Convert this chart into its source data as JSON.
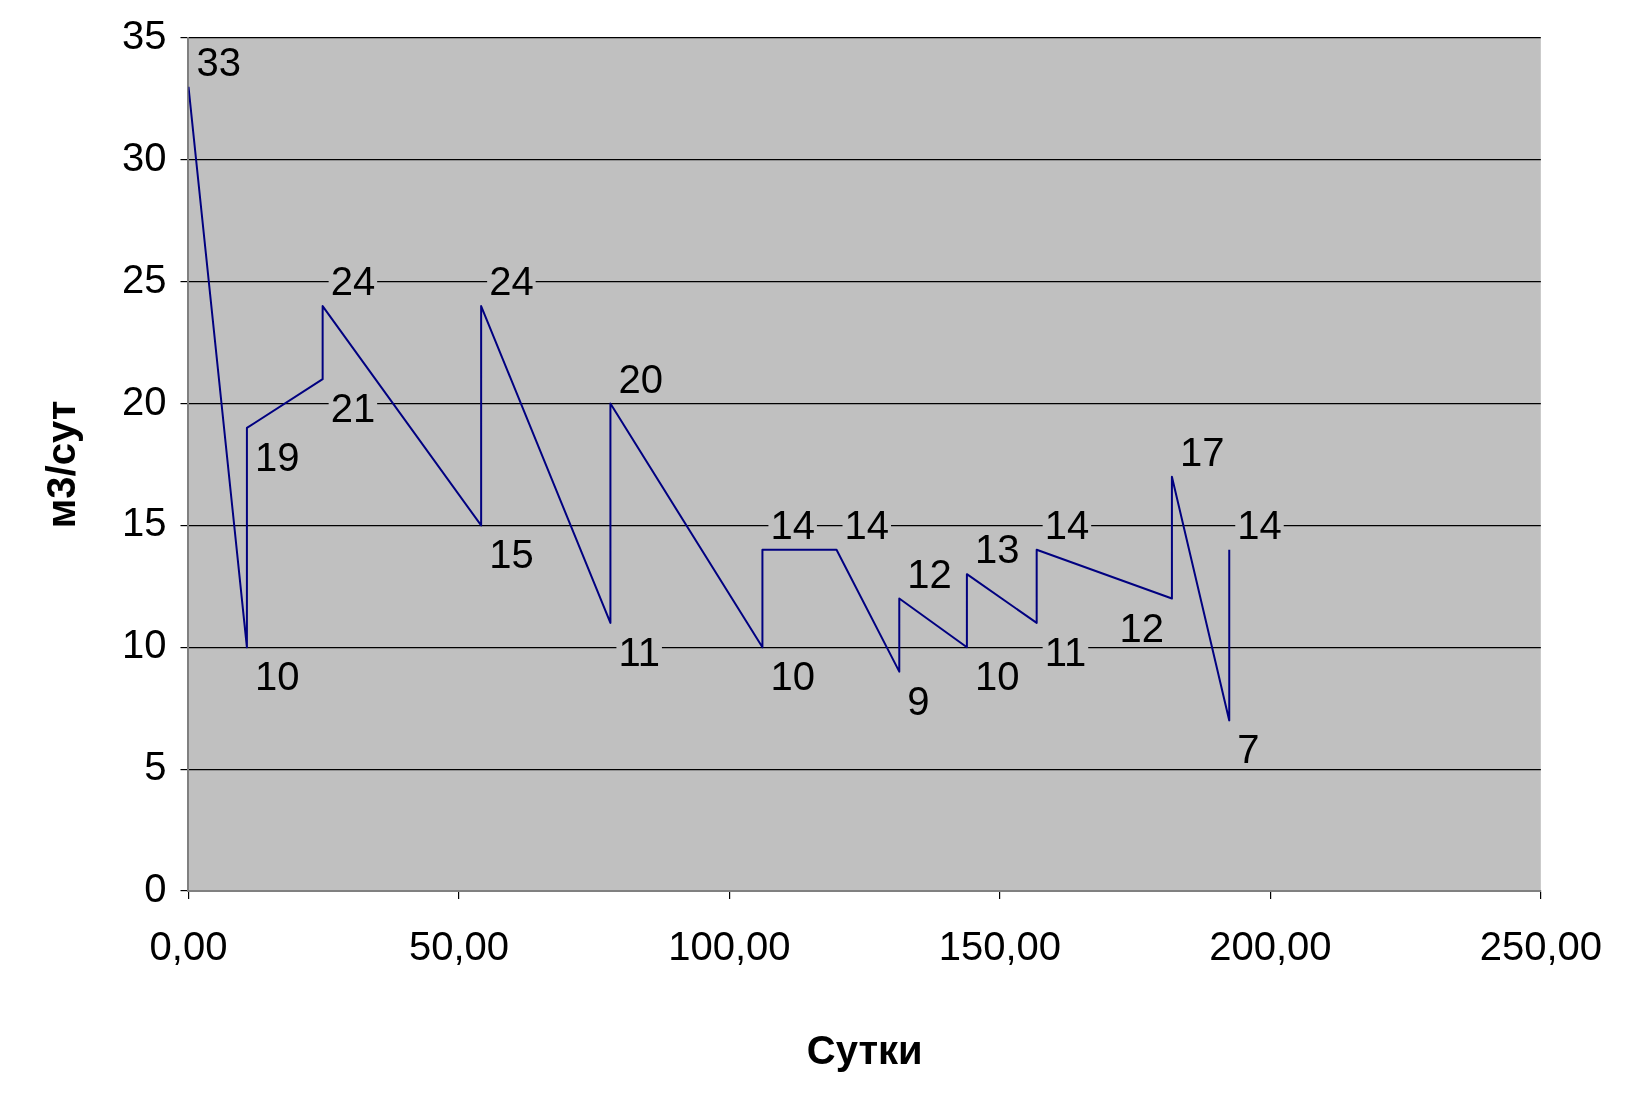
{
  "chart_data": {
    "type": "line",
    "xlabel": "Сутки",
    "ylabel": "м3/сут",
    "x": [
      0,
      10.8,
      10.8,
      24.8,
      24.8,
      54.1,
      54.1,
      78,
      78,
      106.1,
      106.1,
      119.8,
      131.4,
      131.4,
      143.9,
      143.9,
      156.8,
      156.8,
      181.8,
      181.8,
      192.4,
      192.4
    ],
    "series": [
      {
        "color": "#000080",
        "values": [
          33,
          10,
          19,
          21,
          24,
          15,
          24,
          11,
          20,
          10,
          14,
          14,
          9,
          12,
          10,
          13,
          11,
          14,
          12,
          17,
          7,
          14
        ]
      }
    ],
    "xlim": [
      0,
      250
    ],
    "xticks": [
      {
        "value": 0,
        "label": "0,00"
      },
      {
        "value": 50,
        "label": "50,00"
      },
      {
        "value": 100,
        "label": "100,00"
      },
      {
        "value": 150,
        "label": "150,00"
      },
      {
        "value": 200,
        "label": "200,00"
      },
      {
        "value": 250,
        "label": "250,00"
      }
    ],
    "ylim": [
      0,
      35
    ],
    "yticks": [
      0,
      5,
      10,
      15,
      20,
      25,
      30,
      35
    ],
    "grid": "y",
    "marker": "none",
    "line_style": "solid",
    "data_labels": true
  }
}
